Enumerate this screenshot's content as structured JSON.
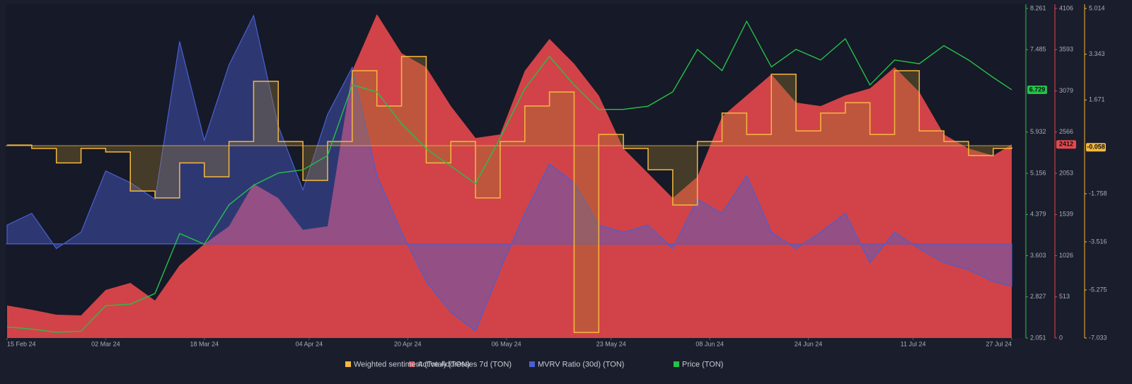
{
  "chart_data": {
    "type": "multi-axis",
    "x": [
      "2024-02-15",
      "2024-02-19",
      "2024-02-23",
      "2024-02-27",
      "2024-03-02",
      "2024-03-06",
      "2024-03-10",
      "2024-03-14",
      "2024-03-18",
      "2024-03-22",
      "2024-03-26",
      "2024-03-30",
      "2024-04-03",
      "2024-04-07",
      "2024-04-11",
      "2024-04-15",
      "2024-04-19",
      "2024-04-23",
      "2024-04-27",
      "2024-05-01",
      "2024-05-05",
      "2024-05-09",
      "2024-05-13",
      "2024-05-17",
      "2024-05-21",
      "2024-05-25",
      "2024-05-29",
      "2024-06-02",
      "2024-06-06",
      "2024-06-10",
      "2024-06-14",
      "2024-06-18",
      "2024-06-22",
      "2024-06-26",
      "2024-06-30",
      "2024-07-04",
      "2024-07-08",
      "2024-07-12",
      "2024-07-16",
      "2024-07-20",
      "2024-07-24",
      "2024-07-27"
    ],
    "xlim": [
      "2024-02-15",
      "2024-07-27"
    ],
    "xticks": [
      {
        "value": "2024-02-15",
        "label": "15 Feb 24"
      },
      {
        "value": "2024-03-02",
        "label": "02 Mar 24"
      },
      {
        "value": "2024-03-18",
        "label": "18 Mar 24"
      },
      {
        "value": "2024-04-04",
        "label": "04 Apr 24"
      },
      {
        "value": "2024-04-20",
        "label": "20 Apr 24"
      },
      {
        "value": "2024-05-06",
        "label": "06 May 24"
      },
      {
        "value": "2024-05-23",
        "label": "23 May 24"
      },
      {
        "value": "2024-06-08",
        "label": "08 Jun 24"
      },
      {
        "value": "2024-06-24",
        "label": "24 Jun 24"
      },
      {
        "value": "2024-07-11",
        "label": "11 Jul 24"
      },
      {
        "value": "2024-07-27",
        "label": "27 Jul 24"
      }
    ],
    "series": [
      {
        "name": "Active Addresses 7d (TON)",
        "color": "#e5484d",
        "style": "area",
        "ylim": [
          0,
          4106
        ],
        "yticks": [
          0,
          513,
          1026,
          1539,
          2053,
          2566,
          3079,
          3593,
          4106
        ],
        "values": [
          405,
          352,
          291,
          282,
          599,
          687,
          467,
          907,
          1172,
          1392,
          1921,
          1744,
          1348,
          1392,
          3330,
          4035,
          3550,
          3374,
          2890,
          2493,
          2537,
          3330,
          3727,
          3418,
          3022,
          2361,
          2053,
          1744,
          2009,
          2758,
          3022,
          3286,
          2934,
          2890,
          3022,
          3110,
          3374,
          3066,
          2537,
          2361,
          2273,
          2412
        ]
      },
      {
        "name": "MVRV Ratio (30d) (TON)",
        "color": "#4a5fd0",
        "style": "baseline-area",
        "baseline": 0,
        "ylim": [
          -40,
          100
        ],
        "values": [
          8,
          13,
          -2,
          5,
          31,
          26,
          19,
          86,
          44,
          76,
          97,
          50,
          23,
          55,
          75,
          29,
          5,
          -16,
          -29,
          -37,
          -11,
          13,
          34,
          26,
          8,
          5,
          8,
          -2,
          19,
          13,
          29,
          5,
          -2,
          5,
          13,
          -8,
          5,
          -2,
          -8,
          -11,
          -16,
          -18
        ]
      },
      {
        "name": "Weighted sentiment (Total) (TON)",
        "color": "#f5b83d",
        "style": "step",
        "baseline": 0,
        "ylim": [
          -7.033,
          5.014
        ],
        "yticks": [
          5.014,
          3.343,
          1.671,
          -1.758,
          -3.516,
          -5.275,
          -7.033
        ],
        "values": [
          0.02,
          -0.1,
          -0.63,
          -0.1,
          -0.23,
          -1.66,
          -1.91,
          -0.63,
          -1.14,
          0.15,
          2.35,
          0.15,
          -1.27,
          0.15,
          2.74,
          1.45,
          3.26,
          -0.63,
          0.15,
          -1.91,
          0.15,
          1.45,
          1.96,
          -6.83,
          0.41,
          -0.1,
          -0.88,
          -2.17,
          0.15,
          1.19,
          0.41,
          2.61,
          0.54,
          1.19,
          1.57,
          0.41,
          2.74,
          0.54,
          0.15,
          -0.36,
          -0.1,
          -0.058
        ]
      },
      {
        "name": "Price (TON)",
        "color": "#26c04a",
        "style": "line",
        "ylim": [
          2.051,
          8.261
        ],
        "yticks": [
          8.261,
          7.485,
          5.932,
          5.156,
          4.379,
          3.603,
          2.827,
          2.051
        ],
        "values": [
          2.26,
          2.22,
          2.16,
          2.18,
          2.66,
          2.69,
          2.89,
          4.02,
          3.82,
          4.56,
          4.93,
          5.16,
          5.22,
          5.49,
          6.82,
          6.69,
          6.09,
          5.62,
          5.29,
          4.96,
          5.82,
          6.75,
          7.36,
          6.82,
          6.36,
          6.36,
          6.42,
          6.69,
          7.49,
          7.09,
          8.02,
          7.16,
          7.49,
          7.29,
          7.69,
          6.82,
          7.29,
          7.22,
          7.56,
          7.29,
          6.96,
          6.729
        ]
      }
    ]
  }
}
